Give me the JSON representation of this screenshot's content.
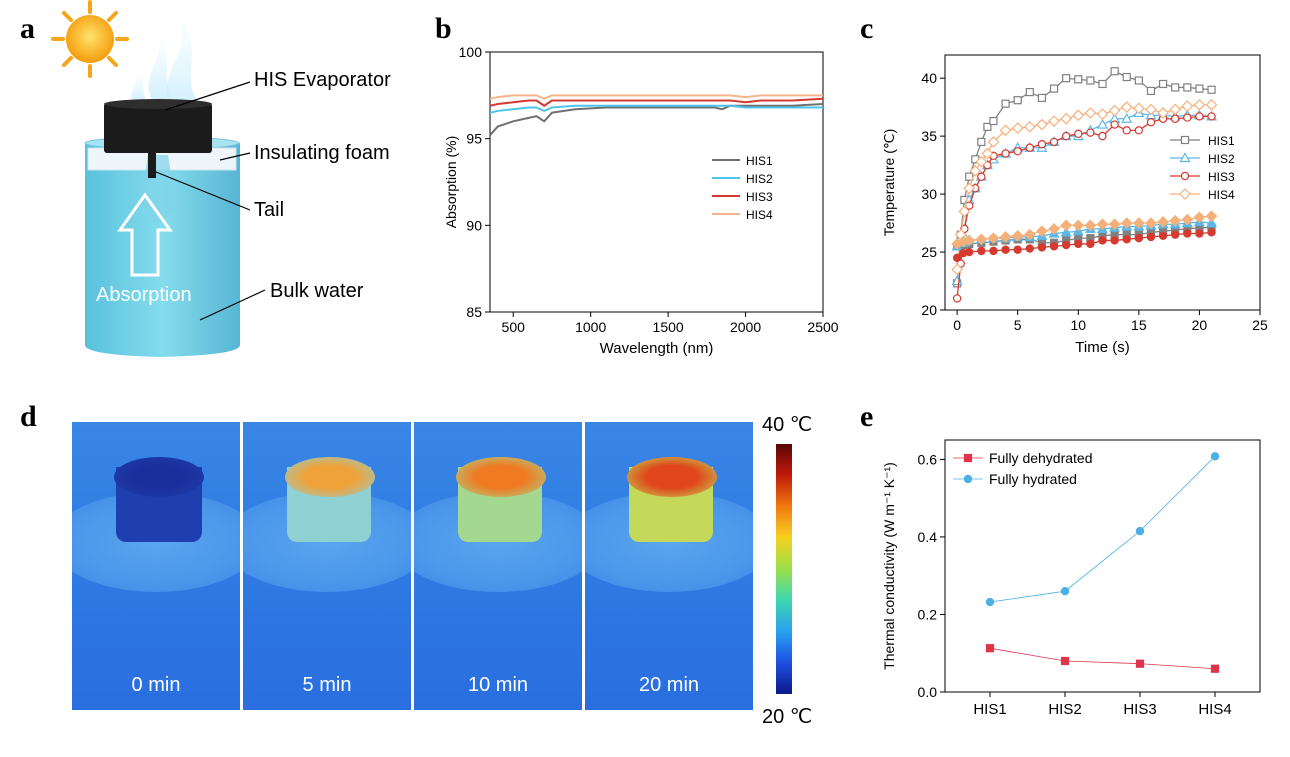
{
  "panels": {
    "a": "a",
    "b": "b",
    "c": "c",
    "d": "d",
    "e": "e"
  },
  "schematic": {
    "labels": [
      "HIS Evaporator",
      "Insulating foam",
      "Tail",
      "Bulk water"
    ],
    "arrow_label": "Absorption",
    "icons": [
      "sun-icon",
      "vapor-icon",
      "up-arrow-icon"
    ]
  },
  "thermal": {
    "frames": [
      {
        "label": "0 min",
        "top_color": "#1a2f9c",
        "body_color": "#1f3fb0",
        "level": 0.0
      },
      {
        "label": "5 min",
        "top_color": "#f0a23a",
        "body_color": "#8fd0d2",
        "level": 0.45
      },
      {
        "label": "10 min",
        "top_color": "#f07a22",
        "body_color": "#a4d890",
        "level": 0.65
      },
      {
        "label": "20 min",
        "top_color": "#e0461a",
        "body_color": "#c4d85a",
        "level": 0.9
      }
    ],
    "scale_max": "40 ℃",
    "scale_min": "20 ℃",
    "colors": {
      "background": "#2a7fe0",
      "cold": "#0a1a8a",
      "hot": "#7a0a0a"
    }
  },
  "chart_data": [
    {
      "id": "b",
      "type": "line",
      "xlabel": "Wavelength (nm)",
      "ylabel": "Absorption (%)",
      "xlim": [
        350,
        2500
      ],
      "ylim": [
        85,
        100
      ],
      "xticks": [
        500,
        1000,
        1500,
        2000,
        2500
      ],
      "yticks": [
        85,
        90,
        95,
        100
      ],
      "legend_position": "right",
      "series": [
        {
          "name": "HIS1",
          "color": "#707070",
          "x": [
            350,
            400,
            500,
            600,
            650,
            700,
            750,
            900,
            1100,
            1300,
            1500,
            1700,
            1800,
            1850,
            1900,
            2000,
            2100,
            2300,
            2500
          ],
          "y": [
            95.2,
            95.7,
            96.0,
            96.2,
            96.3,
            96.0,
            96.5,
            96.7,
            96.8,
            96.8,
            96.8,
            96.8,
            96.8,
            96.7,
            96.9,
            96.9,
            96.9,
            96.9,
            97.0
          ]
        },
        {
          "name": "HIS2",
          "color": "#4ec4e8",
          "x": [
            350,
            400,
            500,
            600,
            650,
            700,
            750,
            900,
            1100,
            1300,
            1500,
            1700,
            1900,
            2000,
            2100,
            2300,
            2500
          ],
          "y": [
            96.5,
            96.6,
            96.7,
            96.8,
            96.8,
            96.6,
            96.8,
            96.9,
            96.9,
            96.9,
            96.9,
            96.9,
            96.9,
            96.8,
            96.8,
            96.8,
            96.8
          ]
        },
        {
          "name": "HIS3",
          "color": "#d43a2f",
          "x": [
            350,
            400,
            500,
            600,
            650,
            700,
            750,
            900,
            1100,
            1300,
            1500,
            1700,
            1900,
            2000,
            2100,
            2300,
            2500
          ],
          "y": [
            96.9,
            97.0,
            97.1,
            97.2,
            97.2,
            96.9,
            97.2,
            97.2,
            97.2,
            97.2,
            97.2,
            97.2,
            97.2,
            97.1,
            97.2,
            97.2,
            97.3
          ]
        },
        {
          "name": "HIS4",
          "color": "#f6b48a",
          "x": [
            350,
            400,
            500,
            600,
            650,
            700,
            750,
            900,
            1100,
            1300,
            1500,
            1700,
            1900,
            2000,
            2100,
            2300,
            2500
          ],
          "y": [
            97.3,
            97.4,
            97.5,
            97.5,
            97.5,
            97.3,
            97.5,
            97.5,
            97.5,
            97.5,
            97.5,
            97.5,
            97.5,
            97.4,
            97.5,
            97.5,
            97.5
          ]
        }
      ]
    },
    {
      "id": "c",
      "type": "line",
      "xlabel": "Time (s)",
      "ylabel": "Temperature (℃)",
      "xlim": [
        -1,
        25
      ],
      "ylim": [
        20,
        42
      ],
      "xticks": [
        0,
        5,
        10,
        15,
        20,
        25
      ],
      "yticks": [
        20,
        25,
        30,
        35,
        40
      ],
      "legend_position": "right",
      "series": [
        {
          "name": "HIS1",
          "color": "#808080",
          "marker": "square",
          "x": [
            0,
            0.3,
            0.6,
            1,
            1.5,
            2,
            2.5,
            3,
            4,
            5,
            6,
            7,
            8,
            9,
            10,
            11,
            12,
            13,
            14,
            15,
            16,
            17,
            18,
            19,
            20,
            21
          ],
          "y": [
            22.3,
            26.5,
            29.5,
            31.5,
            33,
            34.5,
            35.8,
            36.3,
            37.8,
            38.1,
            38.8,
            38.3,
            39.1,
            40.0,
            39.9,
            39.8,
            39.5,
            40.6,
            40.1,
            39.8,
            38.9,
            39.5,
            39.2,
            39.2,
            39.1,
            39.0
          ]
        },
        {
          "name": "HIS2",
          "color": "#5bb8e8",
          "marker": "triangle",
          "x": [
            0,
            0.5,
            1,
            1.5,
            2,
            2.5,
            3,
            4,
            5,
            6,
            7,
            8,
            9,
            10,
            11,
            12,
            13,
            14,
            15,
            16,
            17,
            18,
            19,
            20,
            21
          ],
          "y": [
            22.5,
            26.5,
            29.5,
            30.5,
            31.5,
            32.5,
            33,
            33.5,
            34,
            34,
            34,
            34.5,
            35,
            35,
            35.5,
            36,
            36.5,
            36.5,
            37,
            36.8,
            36.8,
            36.7,
            36.8,
            36.8,
            36.7
          ]
        },
        {
          "name": "HIS3",
          "color": "#d43a2f",
          "marker": "circle",
          "x": [
            0,
            0.3,
            0.6,
            1,
            1.5,
            2,
            2.5,
            3,
            4,
            5,
            6,
            7,
            8,
            9,
            10,
            11,
            12,
            13,
            14,
            15,
            16,
            17,
            18,
            19,
            20,
            21
          ],
          "y": [
            21,
            24,
            27,
            29,
            30.5,
            31.5,
            32.5,
            33.3,
            33.5,
            33.7,
            34,
            34.3,
            34.5,
            35,
            35.2,
            35.3,
            35.0,
            36.0,
            35.5,
            35.5,
            36.2,
            36.5,
            36.5,
            36.6,
            36.7,
            36.7
          ]
        },
        {
          "name": "HIS4",
          "color": "#f5b07a",
          "marker": "diamond",
          "x": [
            0,
            0.3,
            0.6,
            1,
            1.5,
            2,
            2.5,
            3,
            4,
            5,
            6,
            7,
            8,
            9,
            10,
            11,
            12,
            13,
            14,
            15,
            16,
            17,
            18,
            19,
            20,
            21
          ],
          "y": [
            23.5,
            26.5,
            28.5,
            30.5,
            32.0,
            32.8,
            33.5,
            34.5,
            35.5,
            35.7,
            35.8,
            36.0,
            36.3,
            36.5,
            36.8,
            37.0,
            36.9,
            37.2,
            37.5,
            37.4,
            37.3,
            37.0,
            37.3,
            37.6,
            37.7,
            37.7
          ]
        },
        {
          "name": "HIS1",
          "color": "#808080",
          "marker": "square",
          "legend": false,
          "x": [
            0,
            0.5,
            1,
            2,
            3,
            4,
            5,
            6,
            7,
            8,
            9,
            10,
            11,
            12,
            13,
            14,
            15,
            16,
            17,
            18,
            19,
            20,
            21
          ],
          "y": [
            25.5,
            25.6,
            25.7,
            25.8,
            25.9,
            26.0,
            26.1,
            26.1,
            25.8,
            25.8,
            26.0,
            26.2,
            26.2,
            26.4,
            26.5,
            26.5,
            26.5,
            26.7,
            26.8,
            26.9,
            27.0,
            27.1,
            27.1
          ]
        },
        {
          "name": "HIS2",
          "color": "#5bb8e8",
          "marker": "triangle",
          "legend": false,
          "x": [
            0,
            0.5,
            1,
            2,
            3,
            4,
            5,
            6,
            7,
            8,
            9,
            10,
            11,
            12,
            13,
            14,
            15,
            16,
            17,
            18,
            19,
            20,
            21
          ],
          "y": [
            25.5,
            25.8,
            26.0,
            26.1,
            26.2,
            26.2,
            26.3,
            26.3,
            26.4,
            26.6,
            26.7,
            26.8,
            27.0,
            27.0,
            27.1,
            27.2,
            27.2,
            27.3,
            27.4,
            27.4,
            27.5,
            27.6,
            27.5
          ]
        },
        {
          "name": "HIS3",
          "color": "#d43a2f",
          "marker": "circle",
          "legend": false,
          "x": [
            0,
            0.5,
            1,
            2,
            3,
            4,
            5,
            6,
            7,
            8,
            9,
            10,
            11,
            12,
            13,
            14,
            15,
            16,
            17,
            18,
            19,
            20,
            21
          ],
          "y": [
            24.5,
            24.9,
            25.0,
            25.1,
            25.1,
            25.2,
            25.2,
            25.3,
            25.4,
            25.5,
            25.6,
            25.7,
            25.7,
            26.0,
            26.0,
            26.1,
            26.2,
            26.3,
            26.4,
            26.5,
            26.6,
            26.6,
            26.7
          ]
        },
        {
          "name": "HIS4",
          "color": "#f5b07a",
          "marker": "diamond",
          "legend": false,
          "x": [
            0,
            0.5,
            1,
            2,
            3,
            4,
            5,
            6,
            7,
            8,
            9,
            10,
            11,
            12,
            13,
            14,
            15,
            16,
            17,
            18,
            19,
            20,
            21
          ],
          "y": [
            25.7,
            25.9,
            26.0,
            26.1,
            26.2,
            26.3,
            26.4,
            26.5,
            26.8,
            27.0,
            27.3,
            27.3,
            27.3,
            27.4,
            27.4,
            27.5,
            27.5,
            27.5,
            27.6,
            27.7,
            27.8,
            28.0,
            28.1
          ]
        }
      ]
    },
    {
      "id": "e",
      "type": "line",
      "xlabel": "",
      "ylabel": "Thermal conductivity (W m⁻¹ K⁻¹)",
      "categories": [
        "HIS1",
        "HIS2",
        "HIS3",
        "HIS4"
      ],
      "ylim": [
        0,
        0.65
      ],
      "yticks": [
        0.0,
        0.2,
        0.4,
        0.6
      ],
      "legend_position": "top-left",
      "series": [
        {
          "name": "Fully dehydrated",
          "color": "#e0344a",
          "marker": "square",
          "values": [
            0.113,
            0.08,
            0.073,
            0.06
          ]
        },
        {
          "name": "Fully hydrated",
          "color": "#4cb0e6",
          "marker": "circle",
          "values": [
            0.232,
            0.26,
            0.415,
            0.608
          ]
        }
      ]
    }
  ]
}
